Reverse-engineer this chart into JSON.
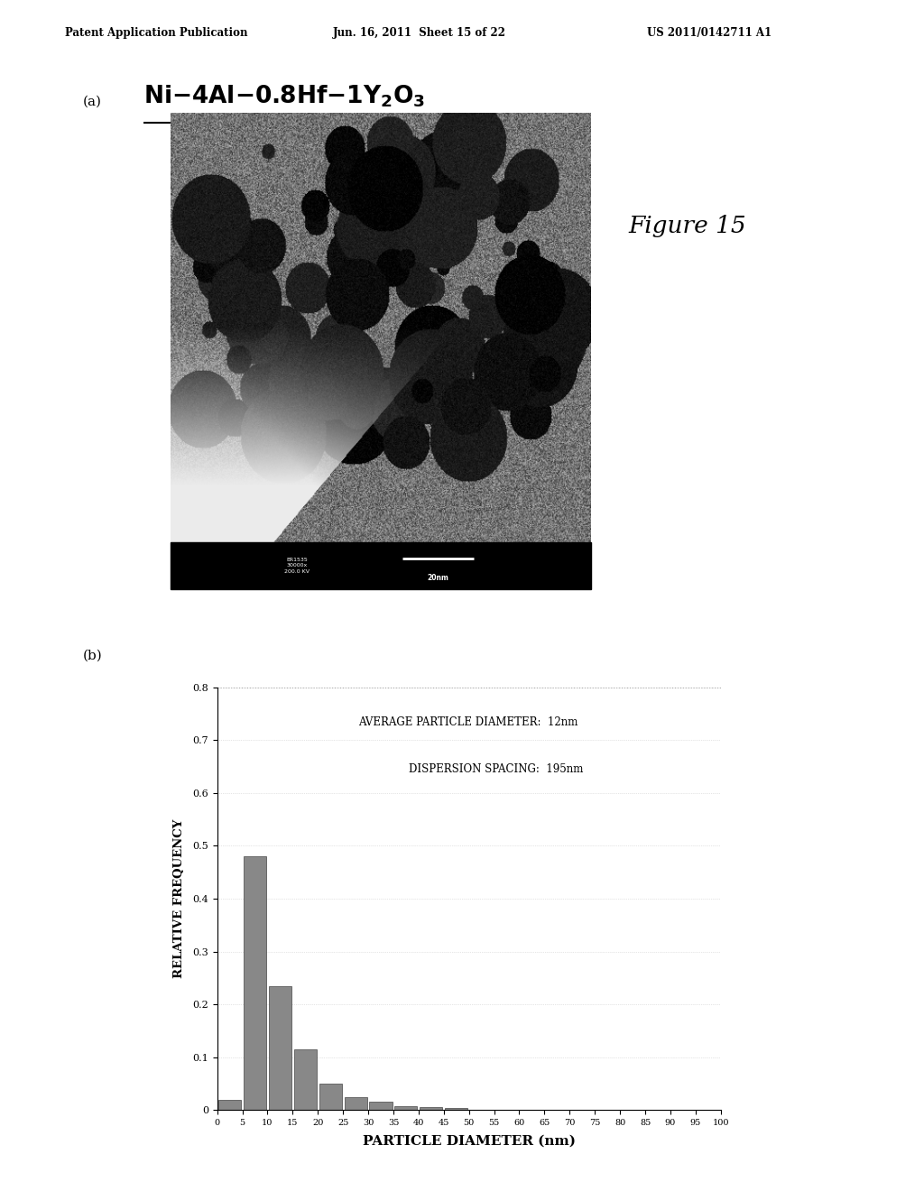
{
  "header_left": "Patent Application Publication",
  "header_mid": "Jun. 16, 2011  Sheet 15 of 22",
  "header_right": "US 2011/0142711 A1",
  "figure_label": "Figure 15",
  "panel_a_label": "(a)",
  "panel_b_label": "(b)",
  "annotation_line1": "AVERAGE PARTICLE DIAMETER:  12nm",
  "annotation_line2": "DISPERSION SPACING:  195nm",
  "xlabel": "PARTICLE DIAMETER (nm)",
  "ylabel": "RELATIVE FREQUENCY",
  "xtick_labels": [
    "0",
    "5",
    "10",
    "15",
    "20",
    "25",
    "30",
    "35",
    "40",
    "45",
    "50",
    "55",
    "60",
    "65",
    "70",
    "75",
    "80",
    "85",
    "90",
    "95",
    "100"
  ],
  "bar_positions": [
    2.5,
    7.5,
    12.5,
    17.5,
    22.5,
    27.5,
    32.5,
    37.5,
    42.5,
    47.5,
    52.5,
    57.5,
    62.5,
    67.5,
    72.5,
    77.5,
    82.5,
    87.5,
    92.5,
    97.5
  ],
  "bar_heights": [
    0.02,
    0.48,
    0.235,
    0.115,
    0.05,
    0.025,
    0.015,
    0.008,
    0.005,
    0.003,
    0.0,
    0.0,
    0.0,
    0.0,
    0.0,
    0.0,
    0.0,
    0.0,
    0.0,
    0.0
  ],
  "bar_width": 4.5,
  "bar_color": "#888888",
  "ylim": [
    0,
    0.8
  ],
  "xlim": [
    0,
    100
  ],
  "yticks": [
    0.0,
    0.1,
    0.2,
    0.3,
    0.4,
    0.5,
    0.6,
    0.7,
    0.8
  ],
  "background_color": "#ffffff"
}
